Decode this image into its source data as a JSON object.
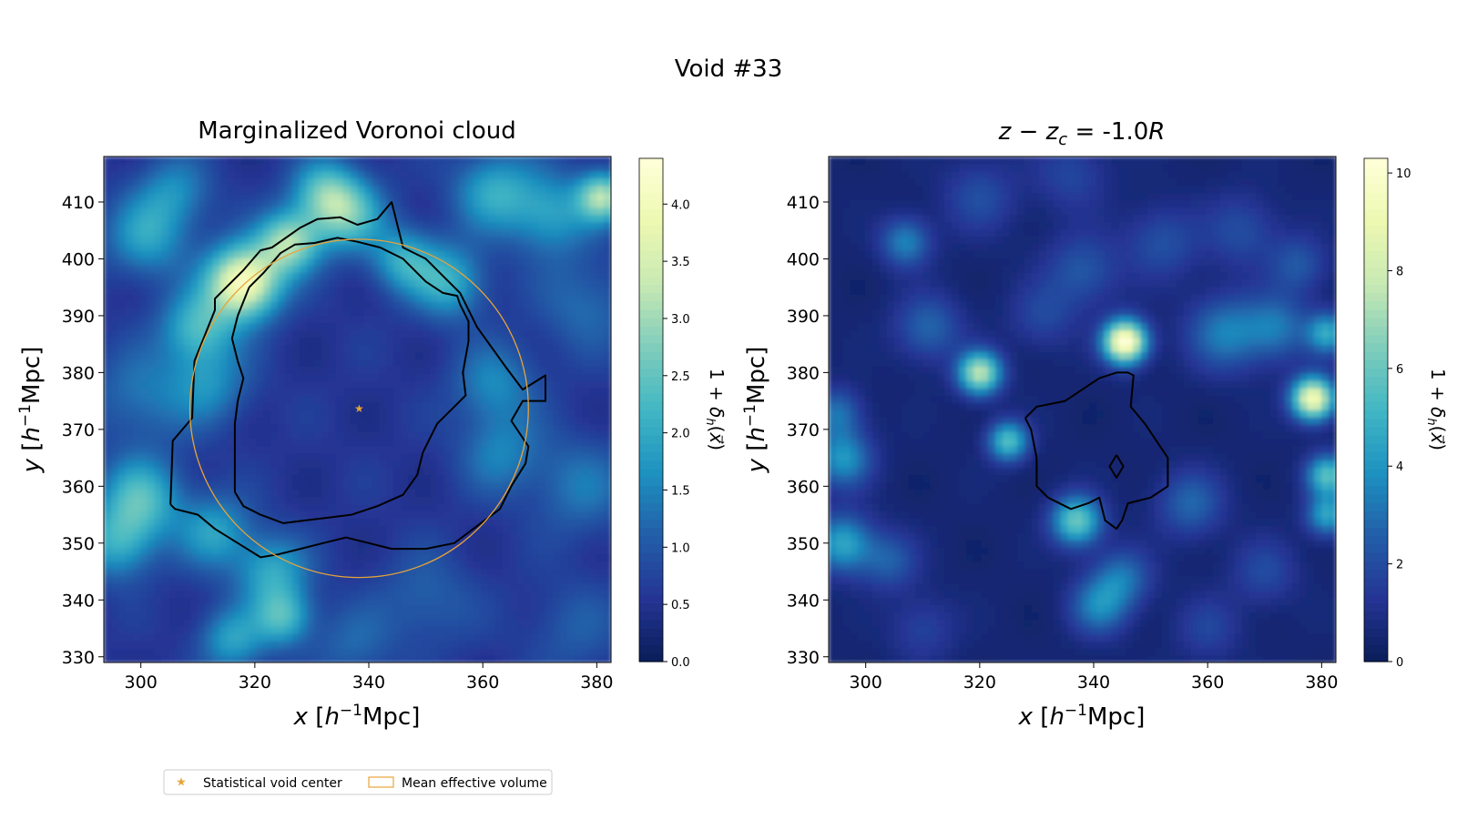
{
  "figure_title": "Void #33",
  "legend": {
    "items": [
      {
        "label": "Statistical void center",
        "marker": "star",
        "color": "#e8a33a"
      },
      {
        "label": "Mean effective volume",
        "marker": "rect",
        "color": "#e8a33a"
      }
    ]
  },
  "colormap": [
    "#081d58",
    "#253494",
    "#225ea8",
    "#1d91c0",
    "#41b6c4",
    "#7fcdbb",
    "#c7e9b4",
    "#edf8b1",
    "#ffffd9"
  ],
  "chart_data": [
    {
      "type": "heatmap",
      "title": "Marginalized Voronoi cloud",
      "xlabel": "x [h⁻¹Mpc]",
      "ylabel": "y [h⁻¹Mpc]",
      "xlim": [
        293.5,
        382.5
      ],
      "ylim": [
        329,
        418
      ],
      "xticks": [
        300,
        320,
        340,
        360,
        380
      ],
      "yticks": [
        330,
        340,
        350,
        360,
        370,
        380,
        390,
        400,
        410
      ],
      "colorbar": {
        "label": "1 + δₕ(x⃗)",
        "range": [
          0,
          4.4
        ],
        "ticks": [
          "0.0",
          "0.5",
          "1.0",
          "1.5",
          "2.0",
          "2.5",
          "3.0",
          "3.5",
          "4.0"
        ],
        "tick_values": [
          0,
          0.5,
          1.0,
          1.5,
          2.0,
          2.5,
          3.0,
          3.5,
          4.0
        ]
      },
      "void_center": {
        "x": 338.3,
        "y": 373.7
      },
      "mean_effective_radius": 29.7,
      "contours": [
        [
          [
            305.2,
            356.8
          ],
          [
            305.6,
            368.0
          ],
          [
            309.0,
            372.0
          ],
          [
            309.4,
            382.0
          ],
          [
            313.0,
            391.0
          ],
          [
            313.0,
            393.0
          ],
          [
            318.0,
            398.0
          ],
          [
            321.0,
            401.5
          ],
          [
            323.0,
            402.0
          ],
          [
            328.0,
            405.5
          ],
          [
            331.0,
            407.0
          ],
          [
            335.0,
            407.3
          ],
          [
            338.0,
            406.0
          ],
          [
            341.5,
            407.0
          ],
          [
            344.0,
            410.0
          ],
          [
            346.0,
            402.0
          ],
          [
            350.0,
            400.0
          ],
          [
            353.0,
            397.0
          ],
          [
            356.0,
            394.0
          ],
          [
            359.0,
            388.0
          ],
          [
            364.0,
            381.0
          ],
          [
            367.0,
            377.0
          ],
          [
            371.0,
            379.5
          ],
          [
            371.0,
            375.0
          ],
          [
            367.0,
            375.0
          ],
          [
            365.0,
            371.5
          ],
          [
            368.0,
            367.0
          ],
          [
            367.5,
            364.0
          ],
          [
            365.0,
            360.0
          ],
          [
            363.0,
            356.0
          ],
          [
            359.0,
            353.0
          ],
          [
            355.0,
            350.0
          ],
          [
            350.0,
            349.0
          ],
          [
            344.0,
            349.0
          ],
          [
            340.0,
            350.0
          ],
          [
            336.0,
            351.0
          ],
          [
            332.0,
            350.0
          ],
          [
            328.0,
            349.0
          ],
          [
            324.0,
            348.0
          ],
          [
            321.0,
            347.5
          ],
          [
            317.0,
            350.0
          ],
          [
            313.0,
            352.5
          ],
          [
            310.0,
            355.0
          ],
          [
            306.0,
            356.0
          ],
          [
            305.2,
            356.8
          ]
        ],
        [
          [
            319.0,
            395.0
          ],
          [
            321.5,
            397.5
          ],
          [
            324.5,
            401.0
          ],
          [
            327.0,
            402.5
          ],
          [
            330.5,
            402.8
          ],
          [
            334.5,
            403.7
          ],
          [
            338.0,
            403.0
          ],
          [
            342.0,
            402.0
          ],
          [
            346.0,
            400.0
          ],
          [
            350.0,
            396.0
          ],
          [
            353.0,
            394.0
          ],
          [
            355.5,
            393.5
          ],
          [
            356.0,
            392.0
          ],
          [
            357.5,
            389.0
          ],
          [
            357.5,
            385.5
          ],
          [
            356.5,
            380.0
          ],
          [
            357.0,
            376.0
          ],
          [
            355.0,
            374.0
          ],
          [
            352.0,
            371.0
          ],
          [
            349.5,
            366.0
          ],
          [
            348.5,
            362.0
          ],
          [
            346.0,
            358.5
          ],
          [
            341.5,
            356.5
          ],
          [
            337.0,
            355.0
          ],
          [
            333.0,
            354.5
          ],
          [
            329.0,
            354.0
          ],
          [
            325.0,
            353.5
          ],
          [
            321.0,
            355.0
          ],
          [
            318.0,
            356.5
          ],
          [
            316.5,
            359.0
          ],
          [
            316.5,
            363.0
          ],
          [
            316.5,
            367.0
          ],
          [
            316.5,
            371.0
          ],
          [
            317.0,
            375.0
          ],
          [
            318.0,
            379.0
          ],
          [
            317.0,
            382.0
          ],
          [
            316.0,
            386.0
          ],
          [
            317.0,
            390.0
          ],
          [
            319.0,
            395.0
          ]
        ]
      ],
      "blobs": [
        {
          "x": 318,
          "y": 396,
          "s": 4.5,
          "a": 3.6
        },
        {
          "x": 326,
          "y": 403,
          "s": 3.8,
          "a": 2.4
        },
        {
          "x": 336,
          "y": 408,
          "s": 4.5,
          "a": 1.9
        },
        {
          "x": 332,
          "y": 412,
          "s": 4.0,
          "a": 1.5
        },
        {
          "x": 310,
          "y": 388,
          "s": 4.5,
          "a": 1.6
        },
        {
          "x": 312,
          "y": 378,
          "s": 5.0,
          "a": 1.0
        },
        {
          "x": 300,
          "y": 358,
          "s": 5.0,
          "a": 1.7
        },
        {
          "x": 296,
          "y": 350,
          "s": 4.5,
          "a": 1.4
        },
        {
          "x": 313,
          "y": 352,
          "s": 4.5,
          "a": 1.3
        },
        {
          "x": 323,
          "y": 345,
          "s": 4.5,
          "a": 1.4
        },
        {
          "x": 325,
          "y": 337,
          "s": 3.5,
          "a": 1.6
        },
        {
          "x": 316,
          "y": 333,
          "s": 4.0,
          "a": 1.3
        },
        {
          "x": 354,
          "y": 396,
          "s": 4.5,
          "a": 1.5
        },
        {
          "x": 346,
          "y": 400,
          "s": 4.0,
          "a": 1.4
        },
        {
          "x": 362,
          "y": 378,
          "s": 5.0,
          "a": 1.0
        },
        {
          "x": 363,
          "y": 366,
          "s": 5.0,
          "a": 0.9
        },
        {
          "x": 362,
          "y": 412,
          "s": 5.0,
          "a": 1.4
        },
        {
          "x": 372,
          "y": 408,
          "s": 5.0,
          "a": 1.3
        },
        {
          "x": 381,
          "y": 411,
          "s": 3.0,
          "a": 2.4
        },
        {
          "x": 301,
          "y": 404,
          "s": 5.0,
          "a": 1.3
        },
        {
          "x": 306,
          "y": 412,
          "s": 4.5,
          "a": 1.0
        },
        {
          "x": 300,
          "y": 376,
          "s": 6.0,
          "a": 0.8
        },
        {
          "x": 378,
          "y": 392,
          "s": 6.0,
          "a": 0.7
        },
        {
          "x": 377,
          "y": 360,
          "s": 6.0,
          "a": 0.8
        },
        {
          "x": 350,
          "y": 340,
          "s": 6.0,
          "a": 0.6
        },
        {
          "x": 337,
          "y": 332,
          "s": 5.0,
          "a": 0.6
        },
        {
          "x": 376,
          "y": 335,
          "s": 6.0,
          "a": 0.5
        }
      ]
    },
    {
      "type": "heatmap",
      "title": "z − z_c = -1.0R",
      "title_parts": {
        "lhs": "z",
        "minus": " − ",
        "z": "z",
        "sub": "c",
        "eq": " = -1.0",
        "R": "R"
      },
      "xlabel": "x [h⁻¹Mpc]",
      "ylabel": "y [h⁻¹Mpc]",
      "xlim": [
        293.5,
        382.5
      ],
      "ylim": [
        329,
        418
      ],
      "xticks": [
        300,
        320,
        340,
        360,
        380
      ],
      "yticks": [
        330,
        340,
        350,
        360,
        370,
        380,
        390,
        400,
        410
      ],
      "colorbar": {
        "label": "1 + δₕ(x⃗)",
        "range": [
          0,
          10.3
        ],
        "ticks": [
          "0",
          "2",
          "4",
          "6",
          "8",
          "10"
        ],
        "tick_values": [
          0,
          2,
          4,
          6,
          8,
          10
        ]
      },
      "contours": [
        [
          [
            328.0,
            372.0
          ],
          [
            330.0,
            374.0
          ],
          [
            335.0,
            375.0
          ],
          [
            338.0,
            377.0
          ],
          [
            341.0,
            379.0
          ],
          [
            344.0,
            380.0
          ],
          [
            346.0,
            380.0
          ],
          [
            347.0,
            379.5
          ],
          [
            346.5,
            374.0
          ],
          [
            349.0,
            371.0
          ],
          [
            353.0,
            365.0
          ],
          [
            353.0,
            360.0
          ],
          [
            350.0,
            358.0
          ],
          [
            346.0,
            357.0
          ],
          [
            345.0,
            354.0
          ],
          [
            344.0,
            352.5
          ],
          [
            342.0,
            354.0
          ],
          [
            341.0,
            358.0
          ],
          [
            339.0,
            357.0
          ],
          [
            336.0,
            356.0
          ],
          [
            332.0,
            358.0
          ],
          [
            330.0,
            360.0
          ],
          [
            330.0,
            365.0
          ],
          [
            329.0,
            370.0
          ],
          [
            328.0,
            372.0
          ]
        ],
        [
          [
            344.0,
            365.5
          ],
          [
            345.2,
            363.5
          ],
          [
            344.0,
            361.5
          ],
          [
            342.8,
            363.5
          ],
          [
            344.0,
            365.5
          ]
        ]
      ],
      "blobs": [
        {
          "x": 345.5,
          "y": 385.5,
          "s": 2.6,
          "a": 10.0
        },
        {
          "x": 320,
          "y": 380,
          "s": 2.6,
          "a": 7.0
        },
        {
          "x": 325,
          "y": 368,
          "s": 2.4,
          "a": 5.0
        },
        {
          "x": 378.5,
          "y": 375.5,
          "s": 2.6,
          "a": 9.0
        },
        {
          "x": 337,
          "y": 354,
          "s": 3.0,
          "a": 5.5
        },
        {
          "x": 296,
          "y": 350,
          "s": 3.5,
          "a": 4.0
        },
        {
          "x": 296,
          "y": 365,
          "s": 3.5,
          "a": 3.5
        },
        {
          "x": 295,
          "y": 373,
          "s": 3.0,
          "a": 2.5
        },
        {
          "x": 307,
          "y": 403,
          "s": 3.0,
          "a": 3.0
        },
        {
          "x": 363,
          "y": 387,
          "s": 4.5,
          "a": 2.8
        },
        {
          "x": 372,
          "y": 388,
          "s": 4.0,
          "a": 2.6
        },
        {
          "x": 381,
          "y": 387,
          "s": 2.5,
          "a": 4.0
        },
        {
          "x": 341,
          "y": 339,
          "s": 3.5,
          "a": 3.0
        },
        {
          "x": 345,
          "y": 344,
          "s": 3.5,
          "a": 2.5
        },
        {
          "x": 381,
          "y": 362,
          "s": 2.5,
          "a": 5.0
        },
        {
          "x": 381,
          "y": 355,
          "s": 2.5,
          "a": 4.0
        },
        {
          "x": 311,
          "y": 388,
          "s": 4.0,
          "a": 2.2
        },
        {
          "x": 357,
          "y": 357,
          "s": 4.0,
          "a": 2.2
        },
        {
          "x": 338,
          "y": 398,
          "s": 4.5,
          "a": 1.8
        },
        {
          "x": 352,
          "y": 403,
          "s": 4.5,
          "a": 1.6
        },
        {
          "x": 366,
          "y": 405,
          "s": 4.5,
          "a": 1.5
        },
        {
          "x": 376,
          "y": 399,
          "s": 3.5,
          "a": 1.8
        },
        {
          "x": 320,
          "y": 411,
          "s": 4.5,
          "a": 1.5
        },
        {
          "x": 336,
          "y": 415,
          "s": 4.5,
          "a": 1.3
        },
        {
          "x": 370,
          "y": 345,
          "s": 4.0,
          "a": 1.4
        },
        {
          "x": 304,
          "y": 347,
          "s": 3.5,
          "a": 2.0
        },
        {
          "x": 360,
          "y": 335,
          "s": 4.0,
          "a": 1.2
        },
        {
          "x": 310,
          "y": 335,
          "s": 4.0,
          "a": 1.2
        },
        {
          "x": 331,
          "y": 390,
          "s": 4.0,
          "a": 1.3
        }
      ]
    }
  ]
}
